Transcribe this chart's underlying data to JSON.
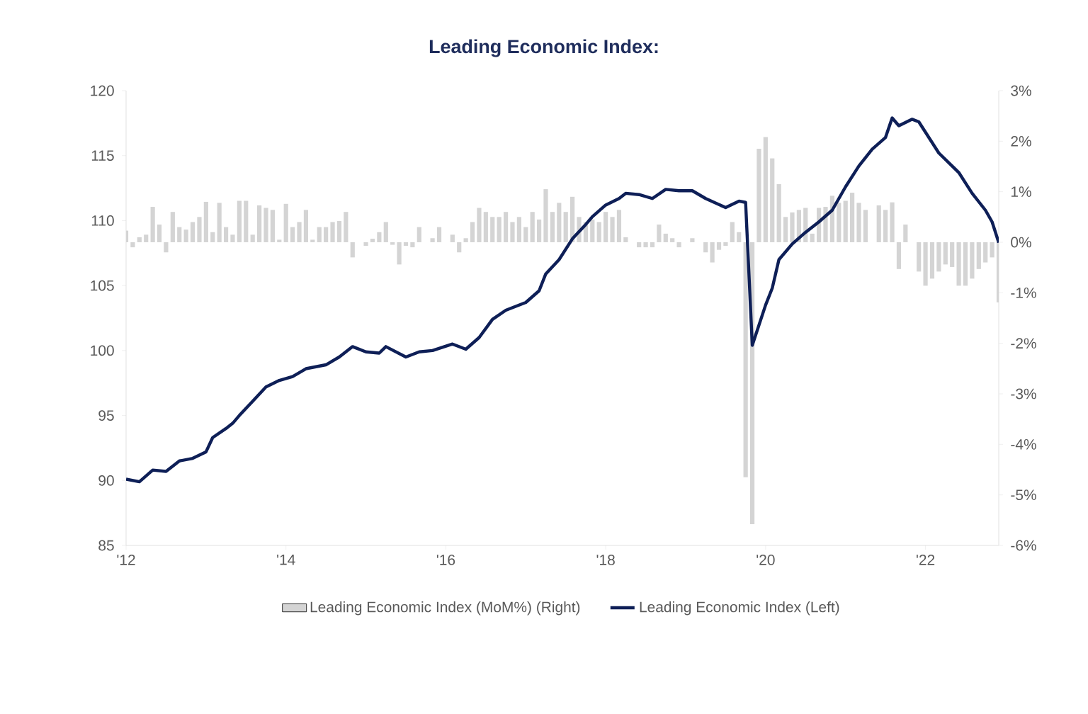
{
  "chart_data": {
    "type": "bar",
    "title": "Leading Economic Index:",
    "x": [
      "2012-01",
      "2012-02",
      "2012-03",
      "2012-04",
      "2012-05",
      "2012-06",
      "2012-07",
      "2012-08",
      "2012-09",
      "2012-10",
      "2012-11",
      "2012-12",
      "2013-01",
      "2013-02",
      "2013-03",
      "2013-04",
      "2013-05",
      "2013-06",
      "2013-07",
      "2013-08",
      "2013-09",
      "2013-10",
      "2013-11",
      "2013-12",
      "2014-01",
      "2014-02",
      "2014-03",
      "2014-04",
      "2014-05",
      "2014-06",
      "2014-07",
      "2014-08",
      "2014-09",
      "2014-10",
      "2014-11",
      "2014-12",
      "2015-01",
      "2015-02",
      "2015-03",
      "2015-04",
      "2015-05",
      "2015-06",
      "2015-07",
      "2015-08",
      "2015-09",
      "2015-10",
      "2015-11",
      "2015-12",
      "2016-01",
      "2016-02",
      "2016-03",
      "2016-04",
      "2016-05",
      "2016-06",
      "2016-07",
      "2016-08",
      "2016-09",
      "2016-10",
      "2016-11",
      "2016-12",
      "2017-01",
      "2017-02",
      "2017-03",
      "2017-04",
      "2017-05",
      "2017-06",
      "2017-07",
      "2017-08",
      "2017-09",
      "2017-10",
      "2017-11",
      "2017-12",
      "2018-01",
      "2018-02",
      "2018-03",
      "2018-04",
      "2018-05",
      "2018-06",
      "2018-07",
      "2018-08",
      "2018-09",
      "2018-10",
      "2018-11",
      "2018-12",
      "2019-01",
      "2019-02",
      "2019-03",
      "2019-04",
      "2019-05",
      "2019-06",
      "2019-07",
      "2019-08",
      "2019-09",
      "2019-10",
      "2019-11",
      "2019-12",
      "2020-01",
      "2020-02",
      "2020-03",
      "2020-04",
      "2020-05",
      "2020-06",
      "2020-07",
      "2020-08",
      "2020-09",
      "2020-10",
      "2020-11",
      "2020-12",
      "2021-01",
      "2021-02",
      "2021-03",
      "2021-04",
      "2021-05",
      "2021-06",
      "2021-07",
      "2021-08",
      "2021-09",
      "2021-10",
      "2021-11",
      "2021-12",
      "2022-01",
      "2022-02",
      "2022-03",
      "2022-04",
      "2022-05",
      "2022-06",
      "2022-07",
      "2022-08",
      "2022-09",
      "2022-10",
      "2022-11",
      "2022-12"
    ],
    "xlim": [
      "2012-01",
      "2022-12"
    ],
    "xticks": [
      {
        "value": "2012-01",
        "label": "'12"
      },
      {
        "value": "2014-01",
        "label": "'14"
      },
      {
        "value": "2016-01",
        "label": "'16"
      },
      {
        "value": "2018-01",
        "label": "'18"
      },
      {
        "value": "2020-01",
        "label": "'20"
      },
      {
        "value": "2022-01",
        "label": "'22"
      }
    ],
    "ylim": [
      85,
      120
    ],
    "yticks": [
      85,
      90,
      95,
      100,
      105,
      110,
      115,
      120
    ],
    "y2lim": [
      -6,
      3
    ],
    "y2ticks": [
      {
        "value": -6,
        "label": "-6%"
      },
      {
        "value": -5,
        "label": "-5%"
      },
      {
        "value": -4,
        "label": "-4%"
      },
      {
        "value": -3,
        "label": "-3%"
      },
      {
        "value": -2,
        "label": "-2%"
      },
      {
        "value": -1,
        "label": "-1%"
      },
      {
        "value": 0,
        "label": "0%"
      },
      {
        "value": 1,
        "label": "1%"
      },
      {
        "value": 2,
        "label": "2%"
      },
      {
        "value": 3,
        "label": "3%"
      }
    ],
    "legend": "bottom",
    "series": [
      {
        "name": "Leading Economic Index (MoM%) (Right)",
        "axis": "y2",
        "color": "#d4d4d4",
        "values": [
          0.23,
          -0.1,
          0.1,
          0.15,
          0.7,
          0.35,
          -0.2,
          0.6,
          0.3,
          0.25,
          0.4,
          0.5,
          0.8,
          0.2,
          0.78,
          0.3,
          0.15,
          0.82,
          0.82,
          0.15,
          0.73,
          0.68,
          0.64,
          0.05,
          0.76,
          0.3,
          0.4,
          0.64,
          0.05,
          0.3,
          0.3,
          0.4,
          0.42,
          0.6,
          -0.3,
          null,
          -0.07,
          0.07,
          0.2,
          0.4,
          -0.05,
          -0.44,
          -0.07,
          -0.1,
          0.3,
          0.0,
          0.08,
          0.3,
          0.0,
          0.15,
          -0.2,
          0.08,
          0.4,
          0.68,
          0.6,
          0.5,
          0.5,
          0.6,
          0.4,
          0.5,
          0.3,
          0.6,
          0.45,
          1.05,
          0.6,
          0.78,
          0.6,
          0.9,
          0.5,
          0.4,
          0.45,
          0.4,
          0.6,
          0.5,
          0.64,
          0.1,
          0.0,
          -0.1,
          -0.1,
          -0.1,
          0.35,
          0.17,
          0.08,
          -0.1,
          null,
          0.08,
          null,
          -0.2,
          -0.4,
          -0.15,
          -0.07,
          0.4,
          0.2,
          -4.65,
          -5.58,
          1.85,
          2.08,
          1.66,
          1.15,
          0.5,
          0.59,
          0.64,
          0.68,
          0.17,
          0.68,
          0.7,
          0.92,
          0.78,
          0.82,
          0.98,
          0.78,
          0.64,
          0.0,
          0.73,
          0.64,
          0.79,
          -0.53,
          0.35,
          0.0,
          -0.58,
          -0.86,
          -0.72,
          -0.58,
          -0.44,
          -0.49,
          -0.86,
          -0.86,
          -0.72,
          -0.53,
          -0.4,
          -0.3,
          -1.19
        ]
      },
      {
        "name": "Leading Economic Index (Left)",
        "type": "line",
        "color": "#0e1f57",
        "x": [
          "2012-01",
          "2012-03",
          "2012-05",
          "2012-07",
          "2012-09",
          "2012-11",
          "2013-01",
          "2013-02",
          "2013-04",
          "2013-05",
          "2013-06",
          "2013-08",
          "2013-10",
          "2013-12",
          "2014-02",
          "2014-04",
          "2014-07",
          "2014-09",
          "2014-11",
          "2015-01",
          "2015-03",
          "2015-04",
          "2015-07",
          "2015-09",
          "2015-11",
          "2016-02",
          "2016-04",
          "2016-06",
          "2016-08",
          "2016-10",
          "2017-01",
          "2017-03",
          "2017-04",
          "2017-06",
          "2017-08",
          "2017-10",
          "2017-11",
          "2018-01",
          "2018-03",
          "2018-04",
          "2018-06",
          "2018-08",
          "2018-10",
          "2018-12",
          "2019-02",
          "2019-04",
          "2019-07",
          "2019-09",
          "2019-10",
          "2019-11",
          "2020-01",
          "2020-02",
          "2020-03",
          "2020-05",
          "2020-07",
          "2020-09",
          "2020-11",
          "2021-01",
          "2021-03",
          "2021-05",
          "2021-07",
          "2021-08",
          "2021-09",
          "2021-11",
          "2021-12",
          "2022-03",
          "2022-05",
          "2022-06",
          "2022-08",
          "2022-10",
          "2022-11",
          "2022-12"
        ],
        "values": [
          90.1,
          89.9,
          90.8,
          90.7,
          91.5,
          91.7,
          92.2,
          93.3,
          94.0,
          94.4,
          95.0,
          96.1,
          97.2,
          97.7,
          98.0,
          98.6,
          98.9,
          99.5,
          100.3,
          99.9,
          99.8,
          100.3,
          99.5,
          99.9,
          100.0,
          100.5,
          100.1,
          101.0,
          102.4,
          103.1,
          103.7,
          104.6,
          105.9,
          107.0,
          108.6,
          109.7,
          110.3,
          111.2,
          111.7,
          112.1,
          112.0,
          111.7,
          112.4,
          112.3,
          112.3,
          111.7,
          111.0,
          111.5,
          111.4,
          100.4,
          103.5,
          104.8,
          107.0,
          108.2,
          109.1,
          109.9,
          110.8,
          112.6,
          114.2,
          115.5,
          116.4,
          117.9,
          117.3,
          117.8,
          117.6,
          115.2,
          114.2,
          113.7,
          112.1,
          110.8,
          109.9,
          108.3
        ]
      }
    ]
  }
}
